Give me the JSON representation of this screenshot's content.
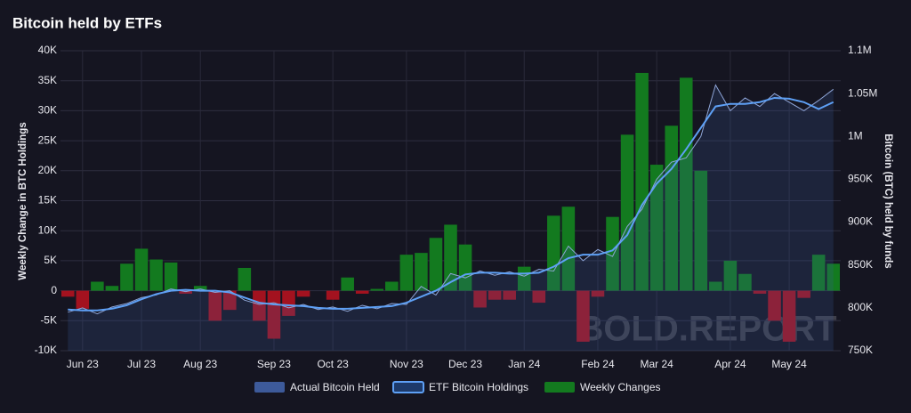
{
  "chart_data": {
    "type": "combo",
    "title": "Bitcoin held by ETFs",
    "watermark": "BOLD.REPORT",
    "ylabel": "Weekly Change in BTC Holdings",
    "y2label": "Bitcoin (BTC) held by funds",
    "categories": [
      null,
      "Jun 23",
      null,
      null,
      null,
      "Jul 23",
      null,
      null,
      null,
      "Aug 23",
      null,
      null,
      null,
      null,
      "Sep 23",
      null,
      null,
      null,
      "Oct 23",
      null,
      null,
      null,
      null,
      "Nov 23",
      null,
      null,
      null,
      "Dec 23",
      null,
      null,
      null,
      "Jan 24",
      null,
      null,
      null,
      null,
      "Feb 24",
      null,
      null,
      null,
      "Mar 24",
      null,
      null,
      null,
      null,
      "Apr 24",
      null,
      null,
      null,
      "May 24",
      null,
      null,
      null
    ],
    "ylim": [
      -10000,
      40000
    ],
    "yticks": [
      {
        "value": -10000,
        "label": "-10K"
      },
      {
        "value": -5000,
        "label": "-5K"
      },
      0,
      {
        "value": 5000,
        "label": "5K"
      },
      {
        "value": 10000,
        "label": "10K"
      },
      {
        "value": 15000,
        "label": "15K"
      },
      {
        "value": 20000,
        "label": "20K"
      },
      {
        "value": 25000,
        "label": "25K"
      },
      {
        "value": 30000,
        "label": "30K"
      },
      {
        "value": 35000,
        "label": "35K"
      },
      {
        "value": 40000,
        "label": "40K"
      }
    ],
    "y2lim": [
      750000,
      1100000
    ],
    "y2ticks": [
      {
        "value": 750000,
        "label": "750K"
      },
      {
        "value": 800000,
        "label": "800K"
      },
      {
        "value": 850000,
        "label": "850K"
      },
      {
        "value": 900000,
        "label": "900K"
      },
      {
        "value": 950000,
        "label": "950K"
      },
      {
        "value": 1000000,
        "label": "1M"
      },
      {
        "value": 1050000,
        "label": "1.05M"
      },
      {
        "value": 1100000,
        "label": "1.1M"
      }
    ],
    "grid": true,
    "series": [
      {
        "name": "Actual Bitcoin Held",
        "type": "area",
        "axis": "y2",
        "color": "#3d5a9a",
        "values": [
          795000,
          800000,
          793000,
          801000,
          805000,
          812000,
          815000,
          822000,
          819000,
          822000,
          818000,
          820000,
          809000,
          804000,
          806000,
          800000,
          804000,
          798000,
          801000,
          796000,
          803000,
          799000,
          805000,
          804000,
          825000,
          815000,
          840000,
          835000,
          843000,
          838000,
          842000,
          837000,
          845000,
          843000,
          872000,
          855000,
          868000,
          860000,
          895000,
          915000,
          950000,
          970000,
          975000,
          1000000,
          1060000,
          1030000,
          1045000,
          1035000,
          1050000,
          1040000,
          1030000,
          1042000,
          1055000
        ]
      },
      {
        "name": "ETF Bitcoin Holdings",
        "type": "line",
        "axis": "y2",
        "color": "#5ea0f5",
        "values": [
          798000,
          797000,
          797000,
          799000,
          803000,
          810000,
          816000,
          820000,
          821000,
          820000,
          820000,
          818000,
          812000,
          806000,
          804000,
          803000,
          802000,
          800000,
          799000,
          799000,
          800000,
          801000,
          802000,
          806000,
          813000,
          820000,
          830000,
          839000,
          841000,
          841000,
          840000,
          840000,
          841000,
          848000,
          858000,
          862000,
          862000,
          867000,
          885000,
          920000,
          945000,
          962000,
          985000,
          1010000,
          1035000,
          1038000,
          1038000,
          1040000,
          1045000,
          1044000,
          1040000,
          1032000,
          1040000
        ]
      },
      {
        "name": "Weekly Changes",
        "type": "bar",
        "color": "#137a1f",
        "negative_color": "#a3121f",
        "values": [
          -1000,
          -3000,
          1500,
          800,
          4500,
          7000,
          5200,
          4700,
          -500,
          800,
          -5000,
          -3200,
          3800,
          -5000,
          -8000,
          -4200,
          -1000,
          0,
          -1500,
          2200,
          -500,
          300,
          1500,
          6000,
          6300,
          8800,
          11000,
          7700,
          -2800,
          -1500,
          -1500,
          4000,
          -2000,
          12500,
          14000,
          -8500,
          -1000,
          12300,
          26000,
          36300,
          21000,
          27500,
          35500,
          20000,
          1500,
          5000,
          2800,
          -500,
          -5000,
          -8500,
          -1200,
          6000,
          4500
        ]
      }
    ]
  }
}
